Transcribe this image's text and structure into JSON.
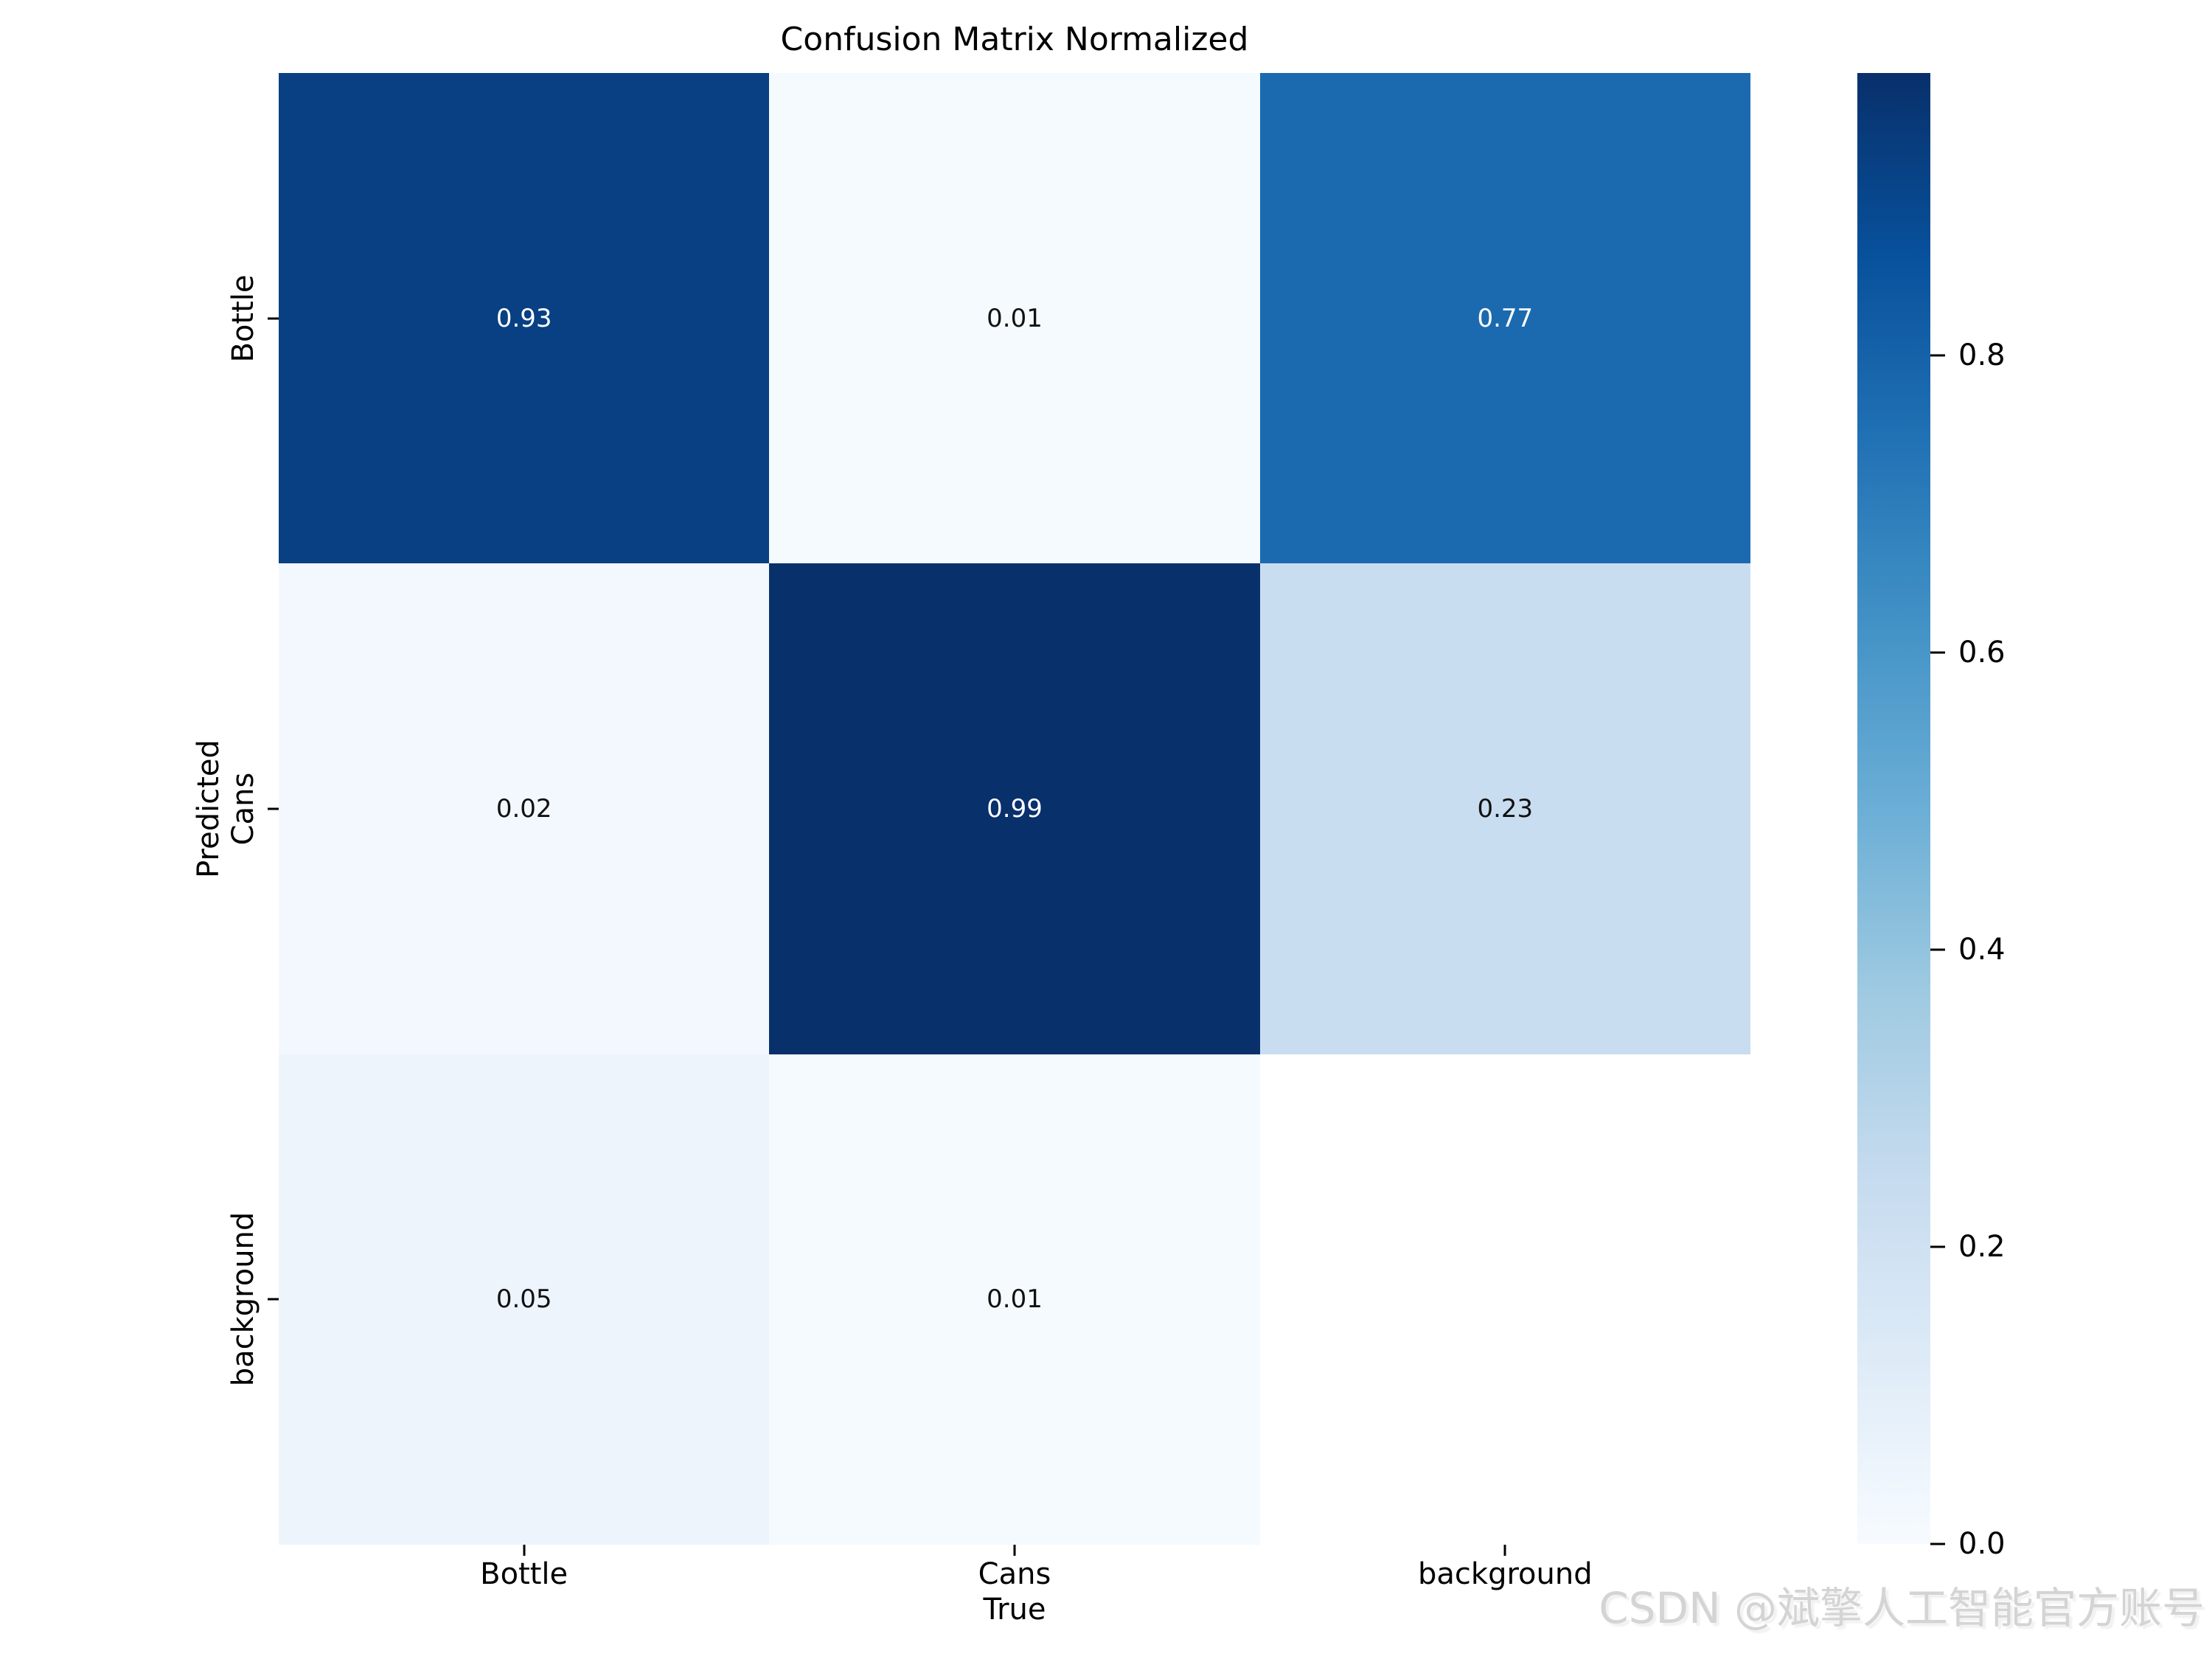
{
  "figure": {
    "watermark": "CSDN @斌擎人工智能官方账号",
    "watermark_color": "#d4d4d4"
  },
  "chart_data": {
    "type": "heatmap",
    "title": "Confusion Matrix Normalized",
    "xlabel": "True",
    "ylabel": "Predicted",
    "x_categories": [
      "Bottle",
      "Cans",
      "background"
    ],
    "y_categories": [
      "Bottle",
      "Cans",
      "background"
    ],
    "matrix": [
      [
        0.93,
        0.01,
        0.77
      ],
      [
        0.02,
        0.99,
        0.23
      ],
      [
        0.05,
        0.01,
        null
      ]
    ],
    "cell_labels": [
      [
        "0.93",
        "0.01",
        "0.77"
      ],
      [
        "0.02",
        "0.99",
        "0.23"
      ],
      [
        "0.05",
        "0.01",
        ""
      ]
    ],
    "cell_colors": [
      [
        "#084083",
        "#f5fafe",
        "#1b6aaf"
      ],
      [
        "#f3f8fe",
        "#08306b",
        "#c9ddf0"
      ],
      [
        "#edf4fc",
        "#f5fafe",
        "#ffffff"
      ]
    ],
    "cell_text_colors": [
      [
        "#ffffff",
        "#111111",
        "#ffffff"
      ],
      [
        "#111111",
        "#ffffff",
        "#111111"
      ],
      [
        "#111111",
        "#111111",
        "#111111"
      ]
    ],
    "colormap": {
      "name": "Blues",
      "stops": [
        "#f7fbff",
        "#deebf7",
        "#c6dbef",
        "#9ecae1",
        "#6baed6",
        "#4292c6",
        "#2171b5",
        "#08519c",
        "#08306b"
      ]
    },
    "vmin": 0.0,
    "vmax": 0.99,
    "colorbar": {
      "position": "right",
      "ticks": [
        0.8,
        0.6,
        0.4,
        0.2,
        0.0
      ],
      "tick_labels": [
        "0.8",
        "0.6",
        "0.4",
        "0.2",
        "0.0"
      ]
    },
    "grid": false,
    "legend": false
  }
}
